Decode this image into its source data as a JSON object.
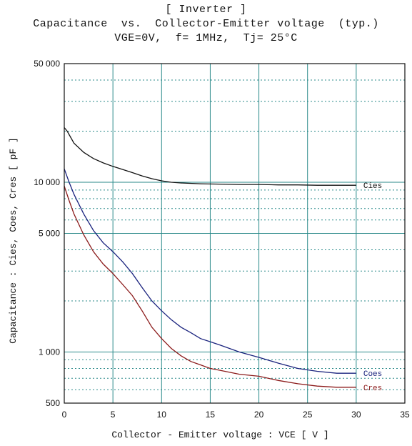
{
  "chart_data": {
    "type": "line",
    "title": "[ Inverter ]",
    "subtitle": "Capacitance  vs.  Collector-Emitter voltage  (typ.)",
    "conditions": "VGE=0V,  f= 1MHz,  Tj= 25°C",
    "xlabel": "Collector - Emitter voltage  :  VCE  [ V ]",
    "ylabel": "Capacitance  : Cies, Coes, Cres  [ pF ]",
    "xlim": [
      0,
      35
    ],
    "ylim": [
      500,
      50000
    ],
    "yscale": "log",
    "grid": true,
    "x_ticks": [
      0,
      5,
      10,
      15,
      20,
      25,
      30,
      35
    ],
    "x_tick_labels": [
      "0",
      "5",
      "10",
      "15",
      "20",
      "25",
      "30",
      "35"
    ],
    "y_ticks": [
      500,
      1000,
      5000,
      10000,
      50000
    ],
    "y_tick_labels": [
      "500",
      "1 000",
      "5 000",
      "10 000",
      "50 000"
    ],
    "y_minor_grid": [
      600,
      700,
      800,
      900,
      2000,
      3000,
      4000,
      6000,
      7000,
      8000,
      9000,
      20000,
      30000,
      40000
    ],
    "series": [
      {
        "name": "Cies",
        "color": "#111111",
        "x": [
          0,
          0.3,
          1,
          2,
          3,
          4,
          5,
          6,
          7,
          8,
          9,
          10,
          11,
          12,
          14,
          16,
          18,
          20,
          22,
          24,
          26,
          28,
          30
        ],
        "y": [
          21000,
          20000,
          17000,
          15000,
          13800,
          13000,
          12400,
          11900,
          11400,
          10900,
          10500,
          10200,
          10000,
          9900,
          9800,
          9750,
          9700,
          9700,
          9650,
          9650,
          9600,
          9600,
          9600
        ]
      },
      {
        "name": "Coes",
        "color": "#1a237e",
        "x": [
          0,
          0.5,
          1,
          2,
          3,
          4,
          5,
          6,
          7,
          8,
          9,
          10,
          11,
          12,
          13,
          14,
          15,
          16,
          18,
          20,
          22,
          24,
          26,
          28,
          30
        ],
        "y": [
          12000,
          10000,
          8500,
          6500,
          5200,
          4400,
          3900,
          3400,
          2900,
          2400,
          2000,
          1750,
          1550,
          1400,
          1300,
          1200,
          1150,
          1100,
          1000,
          930,
          860,
          800,
          770,
          750,
          750
        ]
      },
      {
        "name": "Cres",
        "color": "#8b1a1a",
        "x": [
          0,
          0.5,
          1,
          2,
          3,
          4,
          5,
          6,
          7,
          8,
          9,
          10,
          11,
          12,
          13,
          14,
          15,
          16,
          18,
          20,
          22,
          24,
          26,
          28,
          30
        ],
        "y": [
          9500,
          7800,
          6500,
          4900,
          3900,
          3300,
          2900,
          2500,
          2150,
          1750,
          1400,
          1200,
          1050,
          950,
          880,
          840,
          800,
          780,
          740,
          720,
          680,
          650,
          630,
          620,
          620
        ]
      }
    ]
  }
}
